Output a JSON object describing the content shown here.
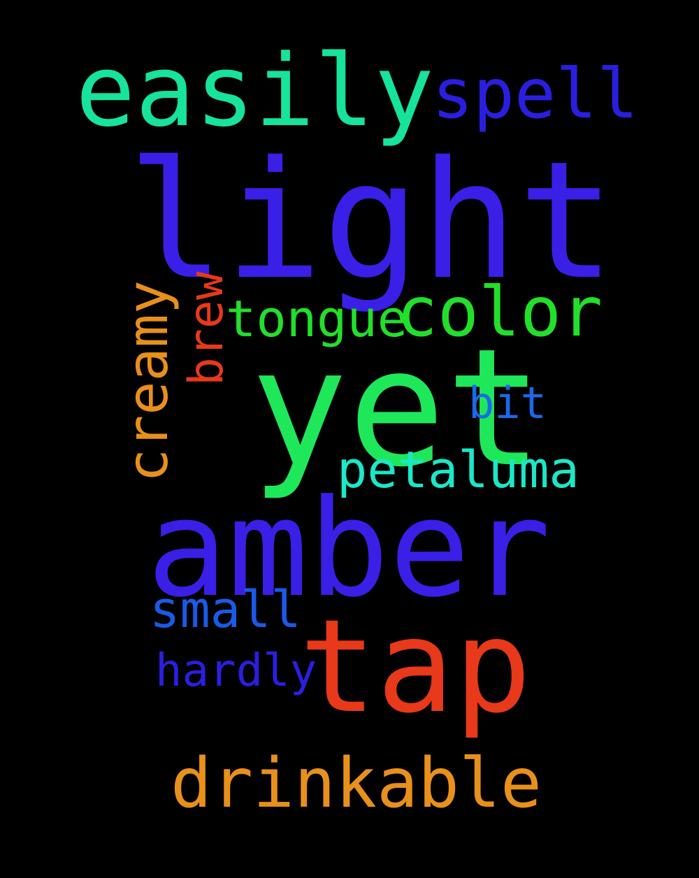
{
  "words": {
    "easily": {
      "text": "easily",
      "color": "#17e39a"
    },
    "spell": {
      "text": "spell",
      "color": "#2a1fe0"
    },
    "light": {
      "text": "light",
      "color": "#3a1fe6"
    },
    "creamy": {
      "text": "creamy",
      "color": "#e8901c"
    },
    "brew": {
      "text": "brew",
      "color": "#e8391a"
    },
    "tongue": {
      "text": "tongue",
      "color": "#22e02a"
    },
    "color": {
      "text": "color",
      "color": "#22e02a"
    },
    "yet": {
      "text": "yet",
      "color": "#1ee85a"
    },
    "bit": {
      "text": "bit",
      "color": "#1a6ae8"
    },
    "petaluma": {
      "text": "petaluma",
      "color": "#1ae8c8"
    },
    "amber": {
      "text": "amber",
      "color": "#3a1fe6"
    },
    "small": {
      "text": "small",
      "color": "#1a5ae8"
    },
    "tap": {
      "text": "tap",
      "color": "#e8391a"
    },
    "hardly": {
      "text": "hardly",
      "color": "#2a1fe0"
    },
    "drinkable": {
      "text": "drinkable",
      "color": "#e8901c"
    }
  }
}
